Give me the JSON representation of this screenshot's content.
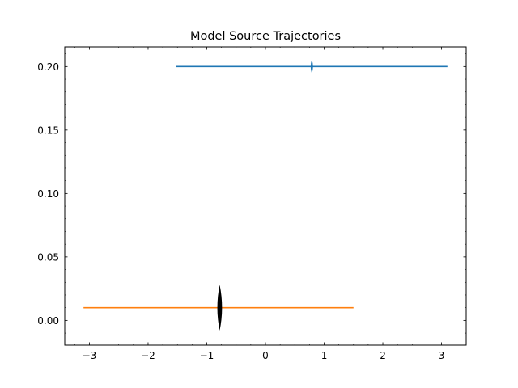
{
  "chart_data": {
    "type": "line",
    "title": "Model Source Trajectories",
    "xlabel": "",
    "ylabel": "",
    "xlim": [
      -3.42,
      3.42
    ],
    "ylim": [
      -0.0195,
      0.2155
    ],
    "x_ticks": [
      -3,
      -2,
      -1,
      0,
      1,
      2,
      3
    ],
    "x_tick_labels": [
      "−3",
      "−2",
      "−1",
      "0",
      "1",
      "2",
      "3"
    ],
    "y_ticks": [
      0.0,
      0.05,
      0.1,
      0.15,
      0.2
    ],
    "y_tick_labels": [
      "0.00",
      "0.05",
      "0.10",
      "0.15",
      "0.20"
    ],
    "grid": false,
    "ticks_direction": "in",
    "ticks_all_sides": true,
    "series": [
      {
        "x": [
          -1.53,
          3.1
        ],
        "y": [
          0.2,
          0.2
        ],
        "color": "#1f77b4"
      },
      {
        "x": [
          -3.1,
          1.5
        ],
        "y": [
          0.01,
          0.01
        ],
        "color": "#ff7f0e"
      }
    ],
    "markers": [
      {
        "x": 0.79,
        "y": 0.2,
        "half_height": 0.0055,
        "half_width": 0.02,
        "color": "#1f77b4"
      },
      {
        "x": -0.78,
        "y": 0.01,
        "half_height": 0.018,
        "half_width": 0.04,
        "color": "#000000"
      }
    ]
  }
}
